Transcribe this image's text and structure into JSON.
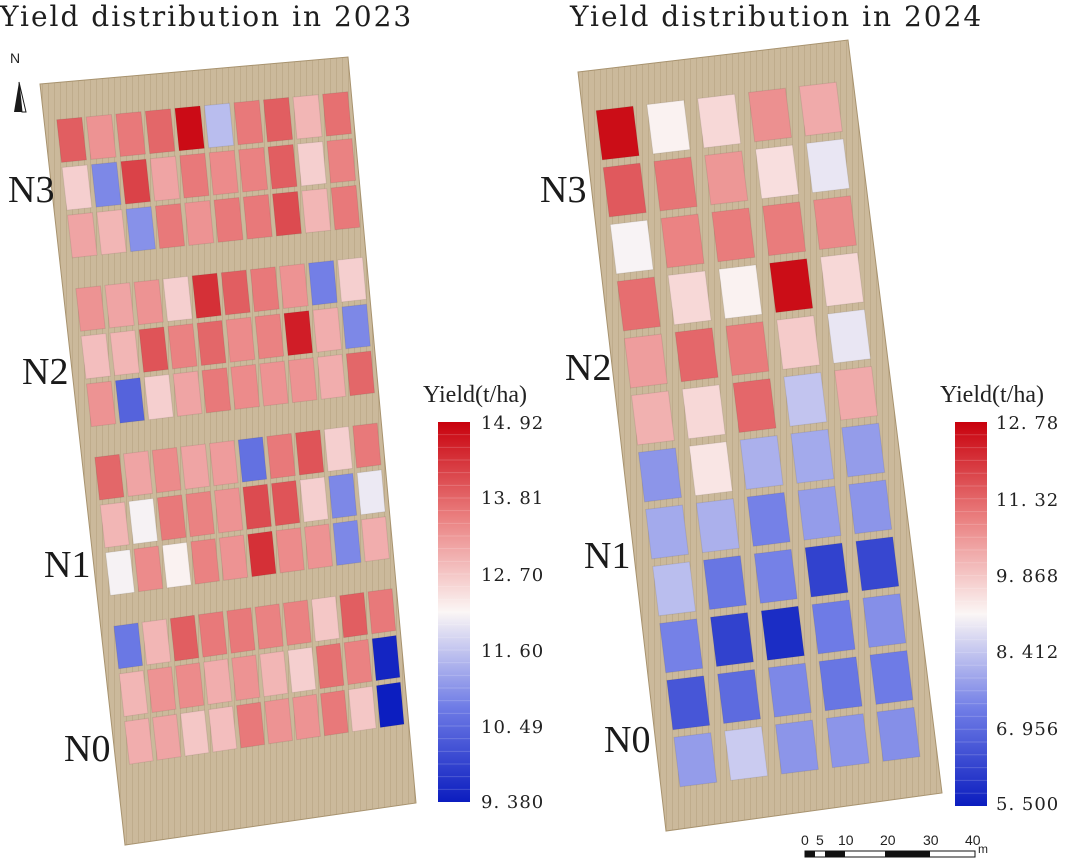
{
  "maps": [
    {
      "title": "Yield distribution in 2023",
      "groups": [
        "N3",
        "N2",
        "N1",
        "N0"
      ],
      "legend": {
        "title": "Yield(t/ha)",
        "min": 9.38,
        "max": 14.92,
        "ticks": [
          "14. 92",
          "13. 81",
          "12. 70",
          "11. 60",
          "10. 49",
          "9. 380"
        ]
      },
      "plots": [
        [
          13.9,
          13.3,
          13.6,
          13.8,
          14.8,
          11.5,
          13.6,
          13.9,
          12.9,
          13.7
        ],
        [
          12.6,
          10.9,
          14.2,
          13.1,
          13.6,
          13.4,
          13.5,
          13.9,
          12.6,
          13.5
        ],
        [
          13.1,
          12.9,
          11.0,
          13.6,
          13.3,
          13.6,
          13.6,
          14.1,
          12.9,
          13.6
        ],
        [
          13.3,
          13.1,
          13.3,
          12.6,
          14.4,
          13.9,
          13.6,
          13.3,
          10.8,
          12.6
        ],
        [
          12.8,
          12.9,
          14.0,
          13.5,
          13.8,
          13.4,
          13.5,
          14.6,
          13.0,
          10.9
        ],
        [
          13.3,
          10.4,
          12.6,
          13.1,
          13.6,
          13.4,
          13.3,
          13.3,
          13.0,
          13.8
        ],
        [
          13.8,
          13.1,
          13.4,
          13.1,
          13.2,
          10.6,
          13.6,
          14.0,
          12.6,
          13.6
        ],
        [
          12.9,
          12.1,
          13.6,
          13.5,
          13.3,
          14.1,
          14.0,
          12.6,
          10.9,
          12.0
        ],
        [
          12.1,
          13.4,
          12.2,
          13.5,
          13.3,
          14.4,
          13.4,
          13.3,
          10.9,
          13.0
        ],
        [
          10.7,
          12.9,
          13.9,
          13.6,
          13.6,
          13.5,
          13.5,
          12.7,
          13.9,
          13.6
        ],
        [
          12.9,
          13.3,
          13.4,
          13.0,
          13.3,
          12.9,
          12.6,
          13.7,
          13.5,
          9.5
        ],
        [
          13.0,
          13.1,
          12.7,
          12.8,
          13.6,
          13.3,
          13.3,
          13.6,
          12.7,
          9.4
        ]
      ]
    },
    {
      "title": "Yield distribution in 2024",
      "groups": [
        "N3",
        "N2",
        "N1",
        "N0"
      ],
      "legend": {
        "title": "Yield(t/ha)",
        "min": 5.5,
        "max": 12.78,
        "ticks": [
          "12. 78",
          "11. 32",
          "9. 868",
          "8. 412",
          "6. 956",
          "5. 500"
        ]
      },
      "plots": [
        [
          12.6,
          9.2,
          9.6,
          10.7,
          10.3
        ],
        [
          11.5,
          11.1,
          10.6,
          9.5,
          8.9
        ],
        [
          9.1,
          10.9,
          11.0,
          11.0,
          10.8
        ],
        [
          11.2,
          9.6,
          9.2,
          12.6,
          9.6
        ],
        [
          10.5,
          11.3,
          11.0,
          9.8,
          8.9
        ],
        [
          10.2,
          9.6,
          11.3,
          8.4,
          10.3
        ],
        [
          7.7,
          9.4,
          8.1,
          8.0,
          7.8
        ],
        [
          8.0,
          8.1,
          7.4,
          7.8,
          7.7
        ],
        [
          8.3,
          7.2,
          7.4,
          6.2,
          6.3
        ],
        [
          7.4,
          6.2,
          5.8,
          7.3,
          7.6
        ],
        [
          6.6,
          7.0,
          7.5,
          7.2,
          7.3
        ],
        [
          7.8,
          8.5,
          7.7,
          7.7,
          7.6
        ]
      ]
    }
  ],
  "north_arrow": {
    "label": "N"
  },
  "scale_bar": {
    "ticks": [
      "0",
      "5",
      "10",
      "20",
      "30",
      "40"
    ],
    "unit": "m"
  },
  "colors": {
    "low": "#0b1dbf",
    "mid": "#fbf6f5",
    "high": "#c8000c",
    "field": "#c9b79a",
    "field_dark": "#b09a79"
  }
}
